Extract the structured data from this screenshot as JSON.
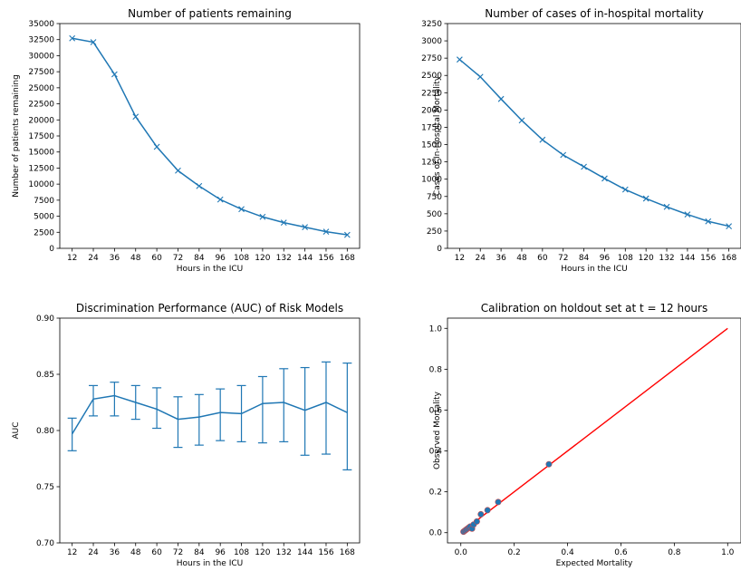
{
  "chart_data": [
    {
      "type": "line",
      "title": "Number of patients remaining",
      "xlabel": "Hours in the ICU",
      "ylabel": "Number of patients remaining",
      "x": [
        12,
        24,
        36,
        48,
        60,
        72,
        84,
        96,
        108,
        120,
        132,
        144,
        156,
        168
      ],
      "xticks": [
        "12",
        "24",
        "36",
        "48",
        "60",
        "72",
        "84",
        "96",
        "108",
        "120",
        "132",
        "144",
        "156",
        "168"
      ],
      "y": [
        32700,
        32100,
        27100,
        20500,
        15800,
        12100,
        9700,
        7600,
        6100,
        4900,
        4000,
        3300,
        2600,
        2100
      ],
      "ylim": [
        0,
        35000
      ],
      "yticks": [
        "0",
        "2500",
        "5000",
        "7500",
        "10000",
        "12500",
        "15000",
        "17500",
        "20000",
        "22500",
        "25000",
        "27500",
        "30000",
        "32500",
        "35000"
      ],
      "marker": "x",
      "grid": false,
      "colors": {
        "line": "#1f77b4"
      }
    },
    {
      "type": "line",
      "title": "Number of cases of in-hospital mortality",
      "xlabel": "Hours in the ICU",
      "ylabel": "Cases of In-Hospital Mortality",
      "x": [
        12,
        24,
        36,
        48,
        60,
        72,
        84,
        96,
        108,
        120,
        132,
        144,
        156,
        168
      ],
      "xticks": [
        "12",
        "24",
        "36",
        "48",
        "60",
        "72",
        "84",
        "96",
        "108",
        "120",
        "132",
        "144",
        "156",
        "168"
      ],
      "y": [
        2730,
        2480,
        2160,
        1850,
        1570,
        1350,
        1180,
        1010,
        850,
        720,
        600,
        490,
        390,
        320
      ],
      "ylim": [
        0,
        3250
      ],
      "yticks": [
        "0",
        "250",
        "500",
        "750",
        "1000",
        "1250",
        "1500",
        "1750",
        "2000",
        "2250",
        "2500",
        "2750",
        "3000",
        "3250"
      ],
      "marker": "x",
      "grid": false,
      "colors": {
        "line": "#1f77b4"
      }
    },
    {
      "type": "line",
      "title": "Discrimination Performance (AUC) of Risk Models",
      "xlabel": "Hours in the ICU",
      "ylabel": "AUC",
      "x": [
        12,
        24,
        36,
        48,
        60,
        72,
        84,
        96,
        108,
        120,
        132,
        144,
        156,
        168
      ],
      "xticks": [
        "12",
        "24",
        "36",
        "48",
        "60",
        "72",
        "84",
        "96",
        "108",
        "120",
        "132",
        "144",
        "156",
        "168"
      ],
      "y": [
        0.797,
        0.828,
        0.831,
        0.825,
        0.819,
        0.81,
        0.812,
        0.816,
        0.815,
        0.824,
        0.825,
        0.818,
        0.825,
        0.816
      ],
      "err_low": [
        0.782,
        0.813,
        0.813,
        0.81,
        0.802,
        0.785,
        0.787,
        0.791,
        0.79,
        0.789,
        0.79,
        0.778,
        0.779,
        0.765
      ],
      "err_high": [
        0.811,
        0.84,
        0.843,
        0.84,
        0.838,
        0.83,
        0.832,
        0.837,
        0.84,
        0.848,
        0.855,
        0.856,
        0.861,
        0.86
      ],
      "ylim": [
        0.7,
        0.9
      ],
      "yticks": [
        "0.70",
        "0.75",
        "0.80",
        "0.85",
        "0.90"
      ],
      "grid": false,
      "colors": {
        "line": "#1f77b4"
      }
    },
    {
      "type": "scatter",
      "title": "Calibration on holdout set at t = 12 hours",
      "xlabel": "Expected Mortality",
      "ylabel": "Observed Mortality",
      "points": [
        {
          "x": 0.01,
          "y": 0.005
        },
        {
          "x": 0.015,
          "y": 0.01
        },
        {
          "x": 0.02,
          "y": 0.015
        },
        {
          "x": 0.025,
          "y": 0.02
        },
        {
          "x": 0.03,
          "y": 0.025
        },
        {
          "x": 0.035,
          "y": 0.03
        },
        {
          "x": 0.042,
          "y": 0.02
        },
        {
          "x": 0.048,
          "y": 0.04
        },
        {
          "x": 0.06,
          "y": 0.055
        },
        {
          "x": 0.075,
          "y": 0.09
        },
        {
          "x": 0.1,
          "y": 0.11
        },
        {
          "x": 0.14,
          "y": 0.15
        },
        {
          "x": 0.33,
          "y": 0.335
        }
      ],
      "reference_line": {
        "x": [
          0.0,
          1.0
        ],
        "y": [
          0.0,
          1.0
        ]
      },
      "xlim": [
        -0.05,
        1.05
      ],
      "ylim": [
        -0.05,
        1.05
      ],
      "xticks": [
        {
          "v": 0.0,
          "label": "0.0"
        },
        {
          "v": 0.2,
          "label": "0.2"
        },
        {
          "v": 0.4,
          "label": "0.4"
        },
        {
          "v": 0.6,
          "label": "0.6"
        },
        {
          "v": 0.8,
          "label": "0.8"
        },
        {
          "v": 1.0,
          "label": "1.0"
        }
      ],
      "yticks": [
        {
          "v": 0.0,
          "label": "0.0"
        },
        {
          "v": 0.2,
          "label": "0.2"
        },
        {
          "v": 0.4,
          "label": "0.4"
        },
        {
          "v": 0.6,
          "label": "0.6"
        },
        {
          "v": 0.8,
          "label": "0.8"
        },
        {
          "v": 1.0,
          "label": "1.0"
        }
      ],
      "grid": false,
      "colors": {
        "points": "#1f77b4",
        "points_edge": "#c44e52",
        "reference": "#ff0000"
      }
    }
  ]
}
